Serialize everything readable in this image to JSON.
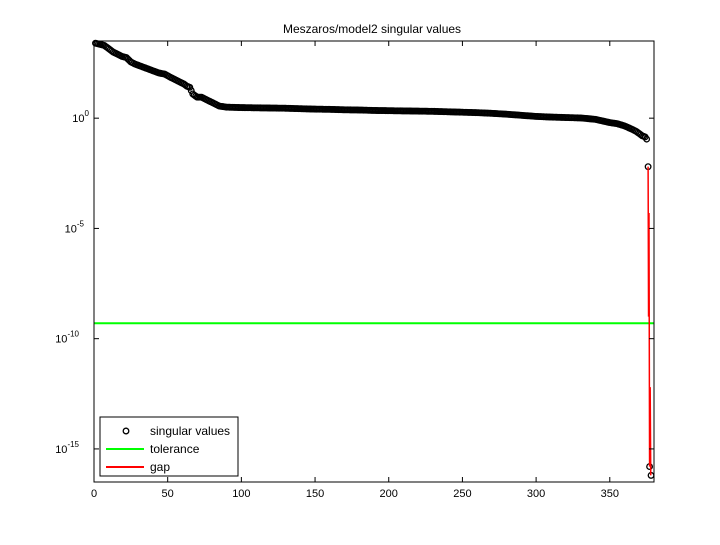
{
  "chart_data": {
    "type": "scatter",
    "title": "Meszaros/model2 singular values",
    "xlabel": "",
    "ylabel": "",
    "xlim": [
      0,
      380
    ],
    "ylim_log10": [
      -16.5,
      3.5
    ],
    "y_scale": "log",
    "grid": false,
    "legend_placement": "bottom-left",
    "x_ticks": [
      0,
      50,
      100,
      150,
      200,
      250,
      300,
      350
    ],
    "x_tick_labels": [
      "0",
      "50",
      "100",
      "150",
      "200",
      "250",
      "300",
      "350"
    ],
    "y_ticks_log10": [
      0,
      -5,
      -10,
      -15
    ],
    "y_tick_labels": [
      {
        "base": "10",
        "exp": "0"
      },
      {
        "base": "10",
        "exp": "-5"
      },
      {
        "base": "10",
        "exp": "-10"
      },
      {
        "base": "10",
        "exp": "-15"
      }
    ],
    "series": [
      {
        "name": "singular values",
        "style": "circle-markers",
        "color": "#000000",
        "note_on_values": "y values given as log10 of singular value",
        "points": [
          [
            1,
            3.4
          ],
          [
            4,
            3.35
          ],
          [
            7,
            3.3
          ],
          [
            10,
            3.15
          ],
          [
            13,
            3.0
          ],
          [
            16,
            2.9
          ],
          [
            19,
            2.8
          ],
          [
            22,
            2.75
          ],
          [
            25,
            2.55
          ],
          [
            28,
            2.45
          ],
          [
            32,
            2.35
          ],
          [
            36,
            2.25
          ],
          [
            40,
            2.15
          ],
          [
            44,
            2.05
          ],
          [
            48,
            2.0
          ],
          [
            52,
            1.85
          ],
          [
            55,
            1.75
          ],
          [
            58,
            1.65
          ],
          [
            61,
            1.55
          ],
          [
            63,
            1.45
          ],
          [
            65,
            1.4
          ],
          [
            67,
            1.1
          ],
          [
            70,
            0.95
          ],
          [
            73,
            0.95
          ],
          [
            76,
            0.85
          ],
          [
            79,
            0.75
          ],
          [
            82,
            0.65
          ],
          [
            85,
            0.55
          ],
          [
            90,
            0.5
          ],
          [
            100,
            0.48
          ],
          [
            110,
            0.47
          ],
          [
            120,
            0.46
          ],
          [
            130,
            0.45
          ],
          [
            140,
            0.43
          ],
          [
            150,
            0.41
          ],
          [
            160,
            0.4
          ],
          [
            170,
            0.38
          ],
          [
            180,
            0.37
          ],
          [
            190,
            0.35
          ],
          [
            200,
            0.34
          ],
          [
            210,
            0.33
          ],
          [
            220,
            0.32
          ],
          [
            230,
            0.31
          ],
          [
            240,
            0.29
          ],
          [
            250,
            0.27
          ],
          [
            260,
            0.25
          ],
          [
            270,
            0.22
          ],
          [
            280,
            0.18
          ],
          [
            290,
            0.13
          ],
          [
            300,
            0.08
          ],
          [
            310,
            0.05
          ],
          [
            320,
            0.03
          ],
          [
            330,
            0.01
          ],
          [
            340,
            -0.05
          ],
          [
            350,
            -0.2
          ],
          [
            355,
            -0.25
          ],
          [
            360,
            -0.35
          ],
          [
            365,
            -0.5
          ],
          [
            368,
            -0.6
          ],
          [
            370,
            -0.7
          ],
          [
            372,
            -0.8
          ],
          [
            374,
            -0.85
          ],
          [
            375,
            -0.95
          ],
          [
            376,
            -2.2
          ],
          [
            377,
            -15.8
          ],
          [
            378,
            -16.2
          ]
        ]
      },
      {
        "name": "tolerance",
        "style": "line",
        "color": "#00ff00",
        "y_log10": -9.3
      },
      {
        "name": "gap",
        "style": "line",
        "color": "#ff0000",
        "points": [
          [
            376,
            -2.2
          ],
          [
            376.3,
            -9.0
          ],
          [
            376.6,
            -4.3
          ],
          [
            377,
            -15.8
          ],
          [
            377.4,
            -12.2
          ],
          [
            377.8,
            -16.2
          ]
        ]
      }
    ]
  }
}
